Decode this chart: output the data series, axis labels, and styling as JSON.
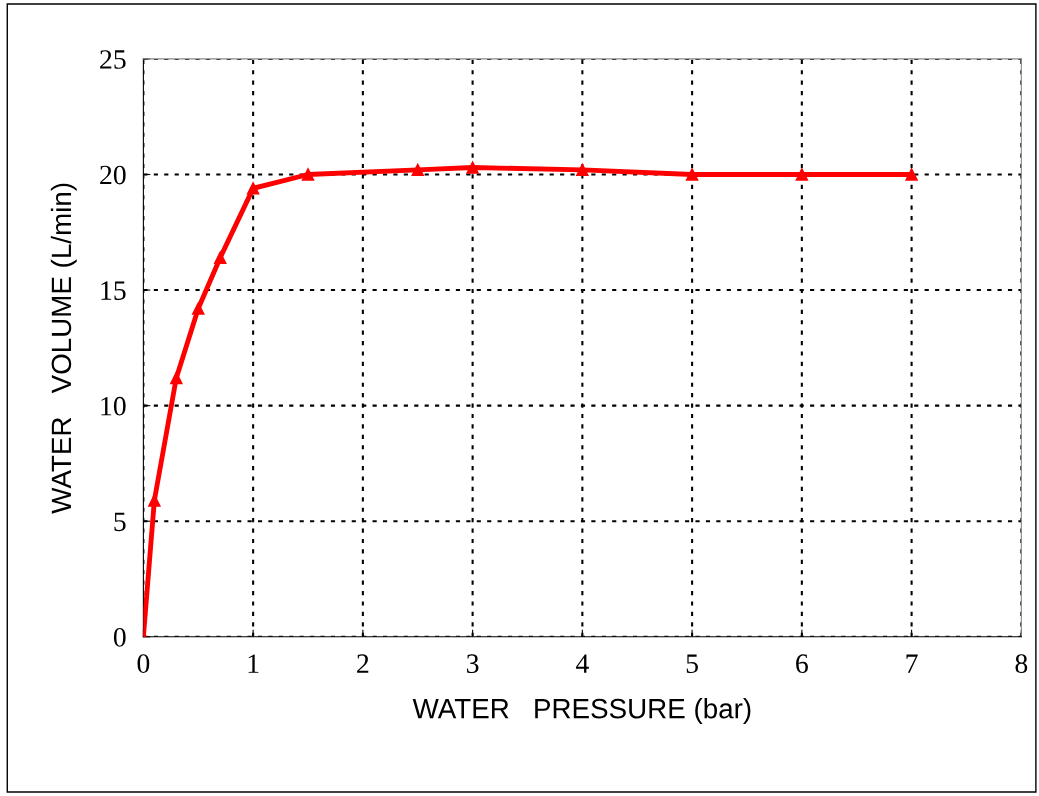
{
  "chart_data": {
    "type": "line",
    "xlabel": "WATER   PRESSURE (bar)",
    "ylabel": "WATER   VOLUME (L/min)",
    "x": [
      0,
      0.1,
      0.3,
      0.5,
      0.7,
      1,
      1.5,
      2.5,
      3,
      4,
      5,
      6,
      7
    ],
    "series": [
      {
        "color": "#ff0000",
        "values": [
          0,
          5.9,
          11.2,
          14.2,
          16.4,
          19.4,
          20,
          20.2,
          20.3,
          20.2,
          20,
          20,
          20
        ]
      }
    ],
    "xlim": [
      0,
      8
    ],
    "ylim": [
      0,
      25
    ],
    "xticks": [
      0,
      1,
      2,
      3,
      4,
      5,
      6,
      7,
      8
    ],
    "yticks": [
      0,
      5,
      10,
      15,
      20,
      25
    ],
    "grid": true,
    "marker": "triangle",
    "line_style": "solid",
    "legend": false
  }
}
